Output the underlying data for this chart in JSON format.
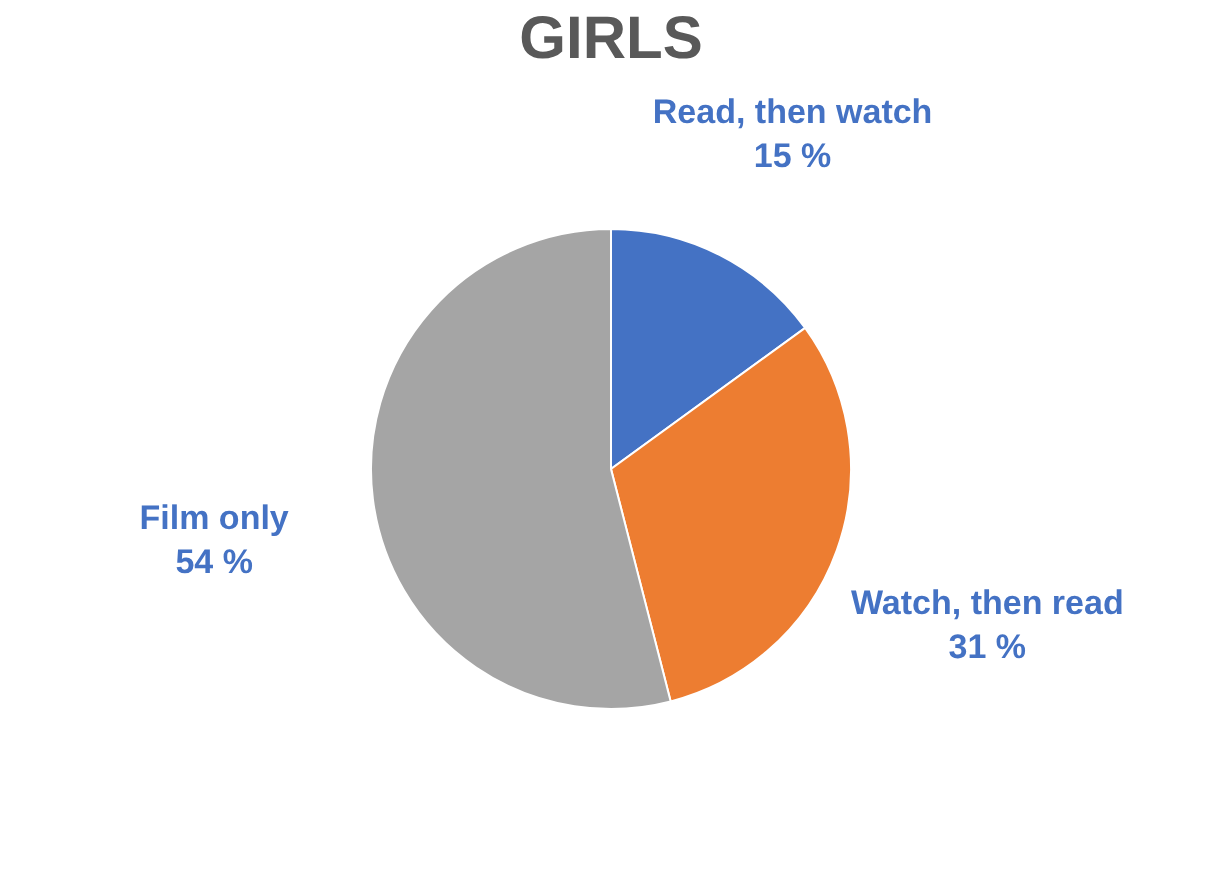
{
  "chart_data": {
    "type": "pie",
    "title": "GIRLS",
    "categories": [
      "Read, then watch",
      "Watch, then read",
      "Film only"
    ],
    "values": [
      15,
      31,
      54
    ],
    "value_labels": [
      "15 %",
      "31 %",
      "54 %"
    ],
    "colors": [
      "#4472c4",
      "#ed7d31",
      "#a5a5a5"
    ],
    "legend": false
  }
}
